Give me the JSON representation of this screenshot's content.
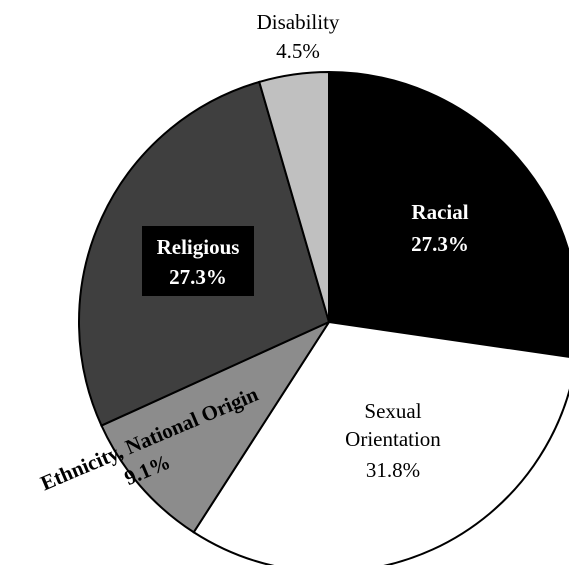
{
  "chart_data": {
    "type": "pie",
    "categories": [
      "Racial",
      "Sexual Orientation",
      "Ethnicity, National Origin",
      "Religious",
      "Disability"
    ],
    "values": [
      27.3,
      31.8,
      9.1,
      27.3,
      4.5
    ],
    "value_labels": [
      "27.3%",
      "31.8%",
      "9.1%",
      "27.3%",
      "4.5%"
    ],
    "colors": [
      "#000000",
      "#ffffff",
      "#8c8c8c",
      "#3f3f3f",
      "#c0c0c0"
    ],
    "title": "",
    "start_angle_deg": 0,
    "direction": "clockwise",
    "legend": "none",
    "labels": {
      "racial": {
        "name": "Racial",
        "value": "27.3%"
      },
      "sexual": {
        "name_line1": "Sexual",
        "name_line2": "Orientation",
        "value": "31.8%"
      },
      "ethnicity": {
        "name": "Ethnicity, National Origin",
        "value": "9.1%"
      },
      "religious": {
        "name": "Religious",
        "value": "27.3%"
      },
      "disability": {
        "name": "Disability",
        "value": "4.5%"
      }
    }
  }
}
